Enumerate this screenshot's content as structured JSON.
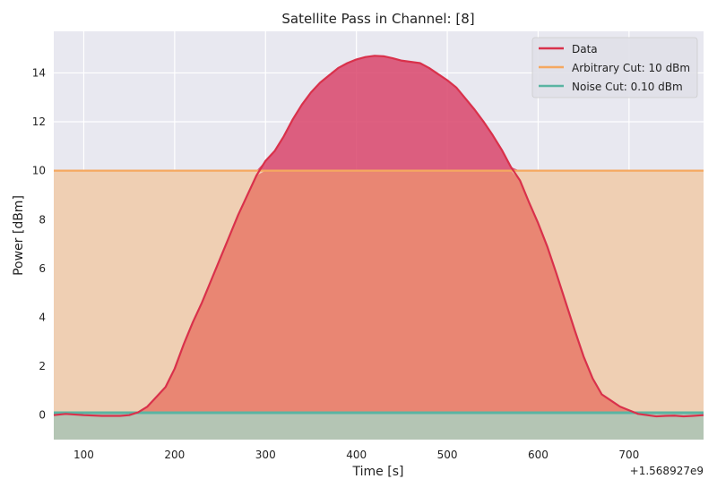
{
  "chart_data": {
    "type": "area",
    "title": "Satellite Pass in Channel: [8]",
    "xlabel": "Time [s]",
    "ylabel": "Power [dBm]",
    "x_offset_label": "+1.568927e9",
    "xlim": [
      67,
      782
    ],
    "ylim": [
      -1.0,
      15.7
    ],
    "xticks": [
      100,
      200,
      300,
      400,
      500,
      600,
      700
    ],
    "yticks": [
      0,
      2,
      4,
      6,
      8,
      10,
      12,
      14
    ],
    "grid": true,
    "legend_position": "top-right",
    "colors": {
      "background": "#e8e8f0",
      "grid": "#ffffff",
      "data_line": "#d9314b",
      "data_fill": "#d9456b",
      "arbitrary_line": "#f5a860",
      "arbitrary_fill": "#efcfb3",
      "noise_line": "#5ab4a2",
      "noise_fill": "#b4c5b4",
      "overlap_fill": "#e98673"
    },
    "series": [
      {
        "name": "Data",
        "x": [
          67,
          80,
          100,
          120,
          140,
          150,
          160,
          170,
          180,
          190,
          200,
          210,
          220,
          230,
          240,
          250,
          260,
          270,
          280,
          290,
          300,
          310,
          320,
          330,
          340,
          350,
          360,
          370,
          380,
          390,
          400,
          410,
          420,
          430,
          440,
          450,
          460,
          470,
          480,
          490,
          500,
          510,
          520,
          530,
          540,
          550,
          560,
          570,
          580,
          590,
          600,
          610,
          620,
          630,
          640,
          650,
          660,
          670,
          680,
          690,
          700,
          710,
          720,
          730,
          740,
          750,
          760,
          770,
          782
        ],
        "y": [
          0.0,
          0.05,
          0.0,
          -0.03,
          -0.03,
          0.0,
          0.12,
          0.35,
          0.75,
          1.15,
          1.9,
          2.9,
          3.8,
          4.6,
          5.5,
          6.4,
          7.3,
          8.2,
          9.0,
          9.8,
          10.4,
          10.8,
          11.4,
          12.1,
          12.7,
          13.2,
          13.6,
          13.9,
          14.2,
          14.4,
          14.55,
          14.65,
          14.7,
          14.68,
          14.6,
          14.5,
          14.45,
          14.4,
          14.2,
          13.95,
          13.7,
          13.4,
          12.95,
          12.5,
          12.0,
          11.45,
          10.85,
          10.15,
          9.6,
          8.7,
          7.85,
          6.9,
          5.8,
          4.65,
          3.5,
          2.4,
          1.5,
          0.85,
          0.6,
          0.35,
          0.2,
          0.05,
          0.0,
          -0.05,
          -0.03,
          -0.02,
          -0.05,
          -0.03,
          0.0
        ]
      },
      {
        "name": "Arbitrary Cut: 10 dBm",
        "y": 10
      },
      {
        "name": "Noise Cut: 0.10 dBm",
        "y": 0.1
      }
    ]
  }
}
